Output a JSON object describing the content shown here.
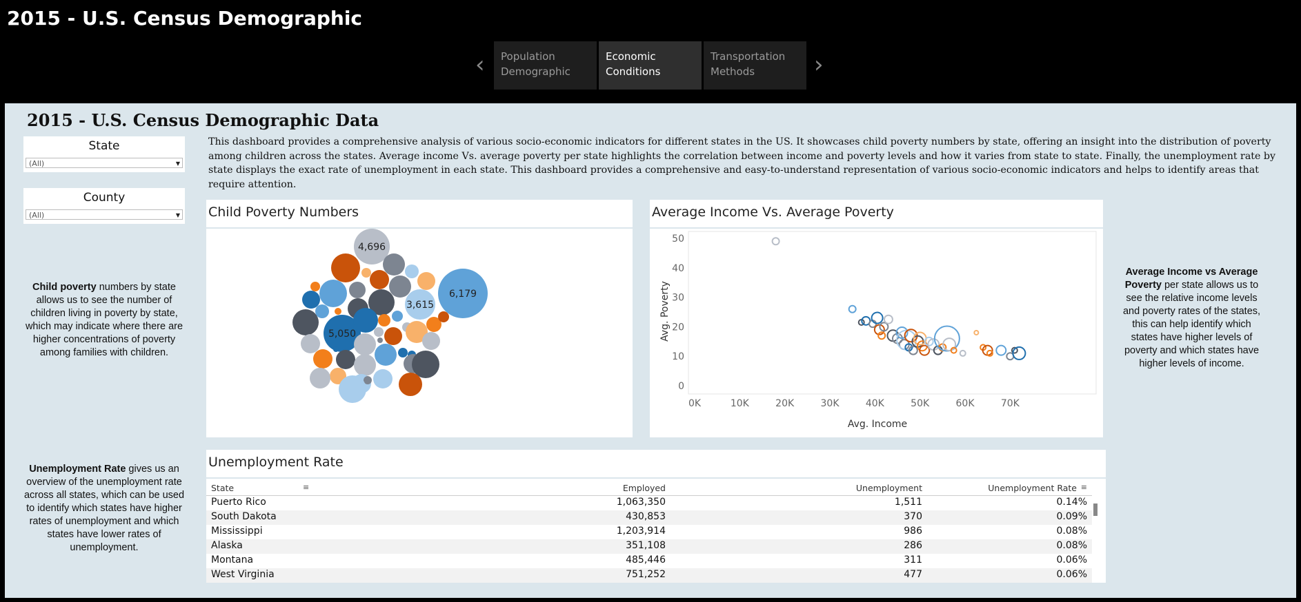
{
  "story": {
    "title": "2015 - U.S.  Census Demographic",
    "prev_icon": "chevron-left-icon",
    "next_icon": "chevron-right-icon",
    "tabs": [
      {
        "label": "Population Demographic",
        "active": false
      },
      {
        "label": "Economic Conditions",
        "active": true
      },
      {
        "label": "Transportation Methods",
        "active": false
      }
    ]
  },
  "dashboard": {
    "title": "2015 - U.S. Census Demographic Data",
    "description": "This dashboard provides a comprehensive analysis of various socio-economic indicators for different states in the US. It showcases child poverty numbers by state, offering an insight into the distribution of poverty among children across the states. Average income Vs. average poverty per state highlights the correlation between income and poverty levels and how it varies from state to state. Finally, the unemployment rate by state displays the exact rate of unemployment in each state. This dashboard provides a comprehensive and easy-to-understand representation of various socio-economic indicators and helps to identify areas that require attention."
  },
  "filters": {
    "state": {
      "label": "State",
      "value": "(All)"
    },
    "county": {
      "label": "County",
      "value": "(All)"
    }
  },
  "notes": {
    "child_poverty": {
      "bold": "Child poverty",
      "text": " numbers by state allows us to see the number of children living in poverty by state, which may indicate where there are higher concentrations of poverty among families with children."
    },
    "income_poverty": {
      "bold": "Average Income vs Average Poverty",
      "text": " per state allows us to see the relative income levels and poverty rates of the states, this can help identify which states have higher levels of poverty and which states have higher levels of income."
    },
    "unemployment": {
      "bold": "Unemployment Rate",
      "text": " gives us an overview of the unemployment rate across all states, which can be used to identify which states have higher rates of unemployment and which states have lower rates of unemployment."
    }
  },
  "colors": {
    "dark_blue": "#1f6fae",
    "mid_blue": "#5fa2d8",
    "light_blue": "#a8cdec",
    "orange": "#f27f1b",
    "dark_orange": "#c9530a",
    "light_orange": "#f8b16a",
    "dark_gray": "#4e5560",
    "gray": "#7d8591",
    "light_gray": "#b8bec8"
  },
  "charts": {
    "child_poverty": {
      "title": "Child Poverty Numbers",
      "labels": [
        "4,696",
        "6,179",
        "3,615",
        "5,050"
      ]
    },
    "income_poverty": {
      "title": "Average Income Vs. Average Poverty",
      "xlabel": "Avg. Income",
      "ylabel": "Avg. Poverty",
      "xticks": [
        "0K",
        "10K",
        "20K",
        "30K",
        "40K",
        "50K",
        "60K",
        "70K"
      ],
      "yticks": [
        "0",
        "10",
        "20",
        "30",
        "40",
        "50"
      ]
    }
  },
  "chart_data": [
    {
      "type": "scatter",
      "title": "Average Income Vs. Average Poverty",
      "xlabel": "Avg. Income",
      "ylabel": "Avg. Poverty",
      "xlim": [
        0,
        75000
      ],
      "ylim": [
        0,
        50
      ],
      "points": [
        {
          "x": 18000,
          "y": 49,
          "r": 5,
          "c": "light_gray"
        },
        {
          "x": 35000,
          "y": 26,
          "r": 5,
          "c": "mid_blue"
        },
        {
          "x": 37000,
          "y": 21.5,
          "r": 4,
          "c": "dark_gray"
        },
        {
          "x": 38000,
          "y": 22,
          "r": 6,
          "c": "dark_blue"
        },
        {
          "x": 39500,
          "y": 21,
          "r": 5,
          "c": "gray"
        },
        {
          "x": 40500,
          "y": 23,
          "r": 8,
          "c": "dark_blue"
        },
        {
          "x": 41000,
          "y": 19,
          "r": 7,
          "c": "dark_orange"
        },
        {
          "x": 41500,
          "y": 17,
          "r": 5,
          "c": "orange"
        },
        {
          "x": 42000,
          "y": 20,
          "r": 6,
          "c": "gray"
        },
        {
          "x": 43000,
          "y": 22.5,
          "r": 6,
          "c": "light_gray"
        },
        {
          "x": 44000,
          "y": 17,
          "r": 8,
          "c": "dark_gray"
        },
        {
          "x": 45000,
          "y": 16,
          "r": 7,
          "c": "gray"
        },
        {
          "x": 46000,
          "y": 18,
          "r": 8,
          "c": "mid_blue"
        },
        {
          "x": 46500,
          "y": 14,
          "r": 7,
          "c": "gray"
        },
        {
          "x": 47000,
          "y": 15.5,
          "r": 14,
          "c": "light_blue"
        },
        {
          "x": 47500,
          "y": 13,
          "r": 5,
          "c": "dark_blue"
        },
        {
          "x": 48000,
          "y": 17,
          "r": 9,
          "c": "dark_orange"
        },
        {
          "x": 48500,
          "y": 12,
          "r": 6,
          "c": "gray"
        },
        {
          "x": 49500,
          "y": 15,
          "r": 8,
          "c": "dark_gray"
        },
        {
          "x": 50000,
          "y": 16,
          "r": 9,
          "c": "light_orange"
        },
        {
          "x": 50500,
          "y": 13.5,
          "r": 7,
          "c": "orange"
        },
        {
          "x": 51000,
          "y": 12,
          "r": 7,
          "c": "dark_orange"
        },
        {
          "x": 52000,
          "y": 15,
          "r": 6,
          "c": "light_blue"
        },
        {
          "x": 53000,
          "y": 14,
          "r": 8,
          "c": "light_gray"
        },
        {
          "x": 54000,
          "y": 12,
          "r": 6,
          "c": "dark_gray"
        },
        {
          "x": 55000,
          "y": 13,
          "r": 5,
          "c": "orange"
        },
        {
          "x": 56000,
          "y": 16,
          "r": 18,
          "c": "mid_blue"
        },
        {
          "x": 56500,
          "y": 14,
          "r": 9,
          "c": "light_gray"
        },
        {
          "x": 57500,
          "y": 12,
          "r": 4,
          "c": "orange"
        },
        {
          "x": 59500,
          "y": 11,
          "r": 4,
          "c": "light_gray"
        },
        {
          "x": 62500,
          "y": 18,
          "r": 3,
          "c": "light_orange"
        },
        {
          "x": 64000,
          "y": 13,
          "r": 4,
          "c": "orange"
        },
        {
          "x": 65000,
          "y": 12,
          "r": 7,
          "c": "dark_orange"
        },
        {
          "x": 65500,
          "y": 11,
          "r": 4,
          "c": "orange"
        },
        {
          "x": 68000,
          "y": 12,
          "r": 7,
          "c": "mid_blue"
        },
        {
          "x": 70000,
          "y": 10,
          "r": 5,
          "c": "gray"
        },
        {
          "x": 71000,
          "y": 12,
          "r": 4,
          "c": "dark_gray"
        },
        {
          "x": 72000,
          "y": 11,
          "r": 9,
          "c": "dark_blue"
        }
      ]
    }
  ],
  "table": {
    "title": "Unemployment Rate",
    "columns": [
      "State",
      "Employed",
      "Unemployment",
      "Unemployment Rate"
    ],
    "rows": [
      {
        "state": "Puerto Rico",
        "employed": "1,063,350",
        "unemployment": "1,511",
        "rate": "0.14%"
      },
      {
        "state": "South Dakota",
        "employed": "430,853",
        "unemployment": "370",
        "rate": "0.09%"
      },
      {
        "state": "Mississippi",
        "employed": "1,203,914",
        "unemployment": "986",
        "rate": "0.08%"
      },
      {
        "state": "Alaska",
        "employed": "351,108",
        "unemployment": "286",
        "rate": "0.08%"
      },
      {
        "state": "Montana",
        "employed": "485,446",
        "unemployment": "311",
        "rate": "0.06%"
      },
      {
        "state": "West Virginia",
        "employed": "751,252",
        "unemployment": "477",
        "rate": "0.06%"
      }
    ]
  }
}
